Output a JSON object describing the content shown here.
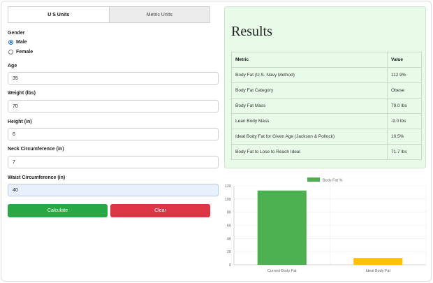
{
  "tabs": [
    {
      "label": "U S Units",
      "active": true
    },
    {
      "label": "Metric Units",
      "active": false
    }
  ],
  "form": {
    "gender_label": "Gender",
    "gender_options": [
      {
        "label": "Male",
        "checked": true
      },
      {
        "label": "Female",
        "checked": false
      }
    ],
    "age_label": "Age",
    "age_value": "35",
    "weight_label": "Weight (lbs)",
    "weight_value": "70",
    "height_label": "Height (in)",
    "height_value": "6",
    "neck_label": "Neck Circumference (in)",
    "neck_value": "7",
    "waist_label": "Waist Circumference (in)",
    "waist_value": "40"
  },
  "buttons": {
    "calculate": "Calculate",
    "clear": "Clear"
  },
  "results": {
    "title": "Results",
    "header": {
      "metric": "Metric",
      "value": "Value"
    },
    "rows": [
      {
        "metric": "Body Fat (U.S. Navy Method)",
        "value": "112.9%"
      },
      {
        "metric": "Body Fat Category",
        "value": "Obese"
      },
      {
        "metric": "Body Fat Mass",
        "value": "79.0 lbs"
      },
      {
        "metric": "Lean Body Mass",
        "value": "-9.0 lbs"
      },
      {
        "metric": "Ideal Body Fat for Given Age (Jackson & Pollock)",
        "value": "10.5%"
      },
      {
        "metric": "Body Fat to Lose to Reach Ideal",
        "value": "71.7 lbs"
      }
    ]
  },
  "chart_data": {
    "type": "bar",
    "categories": [
      "Current Body Fat",
      "Ideal Body Fat"
    ],
    "series": [
      {
        "name": "Body Fat %",
        "values": [
          112.9,
          10.5
        ]
      }
    ],
    "colors": [
      "#4caf50",
      "#ffc107"
    ],
    "legend_color": "#4caf50",
    "ylim": [
      0,
      120
    ],
    "yticks": [
      0,
      20,
      40,
      60,
      80,
      100,
      120
    ],
    "grid": true,
    "legend": "top-center"
  }
}
